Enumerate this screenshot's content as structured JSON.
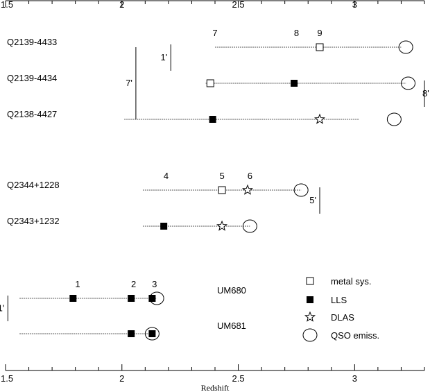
{
  "chart_data": {
    "type": "scatter",
    "xlabel": "Redshift",
    "xlim": [
      1.5,
      3.3
    ],
    "x_ticks": [
      1.5,
      2,
      2.5,
      3
    ],
    "x_tick_labels": [
      "1.5",
      "2",
      "2.5",
      "3"
    ],
    "rows": [
      {
        "name": "Q2139-4433",
        "line": [
          2.4,
          3.2
        ],
        "markers": [
          {
            "type": "metal sys.",
            "x": 2.85
          },
          {
            "type": "QSO emiss.",
            "x": 3.22
          }
        ]
      },
      {
        "name": "Q2139-4434",
        "line": [
          2.36,
          3.22
        ],
        "markers": [
          {
            "type": "metal sys.",
            "x": 2.38
          },
          {
            "type": "LLS",
            "x": 2.74
          },
          {
            "type": "QSO emiss.",
            "x": 3.23
          }
        ]
      },
      {
        "name": "Q2138-4427",
        "line": [
          2.01,
          3.02
        ],
        "markers": [
          {
            "type": "LLS",
            "x": 2.39
          },
          {
            "type": "DLAS",
            "x": 2.85
          },
          {
            "type": "QSO emiss.",
            "x": 3.17
          }
        ]
      },
      {
        "name": "Q2344+1228",
        "line": [
          2.09,
          2.77
        ],
        "markers": [
          {
            "type": "metal sys.",
            "x": 2.43
          },
          {
            "type": "DLAS",
            "x": 2.54
          },
          {
            "type": "QSO emiss.",
            "x": 2.77
          }
        ]
      },
      {
        "name": "Q2343+1232",
        "line": [
          2.09,
          2.55
        ],
        "markers": [
          {
            "type": "LLS",
            "x": 2.18
          },
          {
            "type": "DLAS",
            "x": 2.43
          },
          {
            "type": "QSO emiss.",
            "x": 2.55
          }
        ]
      },
      {
        "name": "UM680",
        "line": [
          1.56,
          2.15
        ],
        "markers": [
          {
            "type": "LLS",
            "x": 1.79
          },
          {
            "type": "LLS",
            "x": 2.04
          },
          {
            "type": "LLS",
            "x": 2.13
          },
          {
            "type": "QSO emiss.",
            "x": 2.15
          }
        ]
      },
      {
        "name": "UM681",
        "line": [
          1.56,
          2.13
        ],
        "markers": [
          {
            "type": "LLS",
            "x": 2.04
          },
          {
            "type": "LLS",
            "x": 2.13
          },
          {
            "type": "QSO emiss.",
            "x": 2.13
          }
        ]
      }
    ],
    "numbers": [
      {
        "text": "7",
        "x": 2.4,
        "above_row": 0
      },
      {
        "text": "8",
        "x": 2.75,
        "above_row": 0
      },
      {
        "text": "9",
        "x": 2.85,
        "above_row": 0
      },
      {
        "text": "4",
        "x": 2.19,
        "above_row": 3
      },
      {
        "text": "5",
        "x": 2.43,
        "above_row": 3
      },
      {
        "text": "6",
        "x": 2.55,
        "above_row": 3
      },
      {
        "text": "1",
        "x": 1.81,
        "above_row": 5
      },
      {
        "text": "2",
        "x": 2.05,
        "above_row": 5
      },
      {
        "text": "3",
        "x": 2.14,
        "above_row": 5
      }
    ],
    "separations": [
      {
        "label": "1'",
        "x": 2.21,
        "label_side": "left",
        "from_row": 0,
        "to_row": 1
      },
      {
        "label": "7'",
        "x": 2.06,
        "label_side": "left",
        "from_row": 0,
        "to_row": 2
      },
      {
        "label": "8'",
        "x": 3.3,
        "label_side": "right",
        "from_row": 1,
        "to_row": 2
      },
      {
        "label": "5'",
        "x": 2.85,
        "label_side": "left",
        "from_row": 3,
        "to_row": 4
      },
      {
        "label": "1'",
        "x": 1.51,
        "label_side": "left",
        "from_row": 5,
        "to_row": 6
      }
    ],
    "legend": {
      "placement": "bottom-right",
      "entries": [
        {
          "marker": "open-square",
          "label": "metal sys."
        },
        {
          "marker": "filled-square",
          "label": "LLS"
        },
        {
          "marker": "open-star",
          "label": "DLAS"
        },
        {
          "marker": "open-circle",
          "label": "QSO emiss."
        }
      ]
    }
  }
}
